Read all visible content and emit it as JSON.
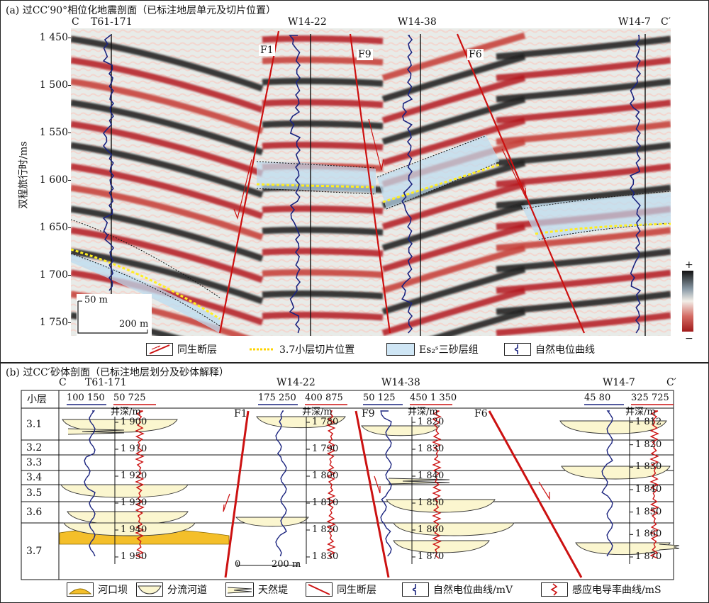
{
  "panel_a": {
    "title": "(a) 过CC′90°相位化地震剖面（已标注地层单元及切片位置）",
    "end_left": "C",
    "end_right": "C′",
    "wells": [
      {
        "name": "T61-171"
      },
      {
        "name": "W14-22"
      },
      {
        "name": "W14-38"
      },
      {
        "name": "W14-7"
      }
    ],
    "faults": [
      "F1",
      "F9",
      "F6"
    ],
    "y_axis_label": "双程旅行时/ms",
    "y_ticks": [
      "1 450",
      "1 500",
      "1 550",
      "1 600",
      "1 650",
      "1 700",
      "1 750"
    ],
    "scale_vertical": "50 m",
    "scale_horizontal": "200 m",
    "colorbar_plus": "+",
    "colorbar_minus": "−",
    "legend": [
      {
        "icon": "growth-fault-icon",
        "label": "同生断层"
      },
      {
        "icon": "slice-line-icon",
        "label": "3.7小层切片位置"
      },
      {
        "icon": "sand-group-icon",
        "label": "Es₂ˢ三砂层组"
      },
      {
        "icon": "sp-curve-icon",
        "label": "自然电位曲线"
      }
    ],
    "colors": {
      "red": "#b3191e",
      "black": "#1a1a1a",
      "blue_zone": "#bcdcf0",
      "slice": "#ffee22"
    }
  },
  "panel_b": {
    "title": "(b) 过CC′砂体剖面（已标注地层划分及砂体解释）",
    "end_left": "C",
    "end_right": "C′",
    "layer_header": "小层",
    "layers": [
      "3.1",
      "3.2",
      "3.3",
      "3.4",
      "3.5",
      "3.6",
      "3.7"
    ],
    "depth_label": "井深/m",
    "wells": [
      {
        "name": "T61-171",
        "sp_range": "100  150",
        "cond_range": "50  725",
        "depths": [
          "1 900",
          "1 910",
          "1 920",
          "1 930",
          "1 940",
          "1 950"
        ]
      },
      {
        "name": "W14-22",
        "sp_range": "175  250",
        "cond_range": "400  875",
        "depths": [
          "1 780",
          "1 790",
          "1 800",
          "1 810",
          "1 820",
          "1 830"
        ]
      },
      {
        "name": "W14-38",
        "sp_range": "50  125",
        "cond_range": "450  1 350",
        "depths": [
          "1 820",
          "1 830",
          "1 840",
          "1 850",
          "1 860",
          "1 870"
        ]
      },
      {
        "name": "W14-7",
        "sp_range": "45  80",
        "cond_range": "325  725",
        "depths": [
          "1 812",
          "1 820",
          "1 830",
          "1 840",
          "1 850",
          "1 860",
          "1 870"
        ]
      }
    ],
    "faults": [
      "F1",
      "F9",
      "F6"
    ],
    "scale_zero": "0",
    "scale_length": "200 m",
    "legend": [
      {
        "icon": "mouth-bar-icon",
        "label": "河口坝"
      },
      {
        "icon": "channel-icon",
        "label": "分流河道"
      },
      {
        "icon": "levee-icon",
        "label": "天然堤"
      },
      {
        "icon": "growth-fault-icon",
        "label": "同生断层"
      },
      {
        "icon": "sp-curve-icon",
        "label": "自然电位曲线/mV"
      },
      {
        "icon": "conductivity-curve-icon",
        "label": "感应电导率曲线/mS"
      }
    ],
    "colors": {
      "sand": "#fbf6cf",
      "mouth_bar": "#f4bf2a",
      "fault": "#cc1111",
      "sp": "#1a237e",
      "cond": "#cc1111"
    }
  }
}
